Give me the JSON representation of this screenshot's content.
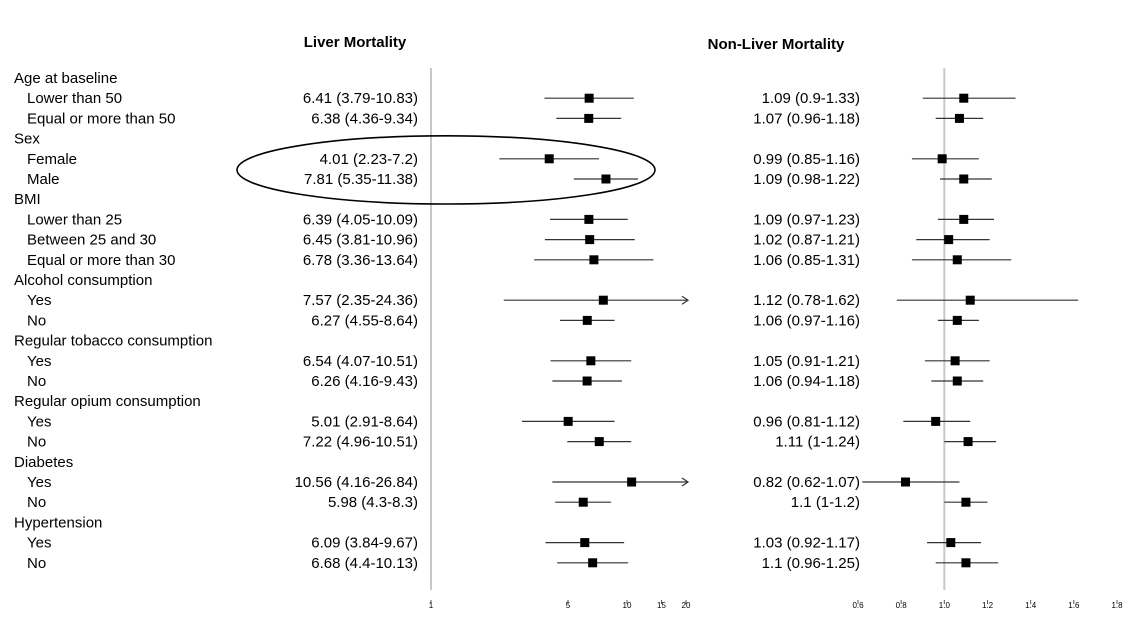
{
  "chart_data": {
    "type": "forest",
    "panels": [
      {
        "title": "Liver Mortality",
        "scale": "log",
        "xlim": [
          1,
          20
        ],
        "ticks": [
          1,
          5,
          10,
          15,
          20
        ],
        "tick_labels": [
          "1",
          "5",
          "10",
          "15",
          "20"
        ],
        "reference_line": 1,
        "rows": [
          {
            "label": "Lower than 50",
            "group": "Age at baseline",
            "estimate": 6.41,
            "lower": 3.79,
            "upper": 10.83,
            "text": "6.41 (3.79-10.83)"
          },
          {
            "label": "Equal or more than 50",
            "group": "Age at baseline",
            "estimate": 6.38,
            "lower": 4.36,
            "upper": 9.34,
            "text": "6.38 (4.36-9.34)"
          },
          {
            "label": "Female",
            "group": "Sex",
            "estimate": 4.01,
            "lower": 2.23,
            "upper": 7.2,
            "text": "4.01 (2.23-7.2)"
          },
          {
            "label": "Male",
            "group": "Sex",
            "estimate": 7.81,
            "lower": 5.35,
            "upper": 11.38,
            "text": "7.81 (5.35-11.38)"
          },
          {
            "label": "Lower than 25",
            "group": "BMI",
            "estimate": 6.39,
            "lower": 4.05,
            "upper": 10.09,
            "text": "6.39 (4.05-10.09)"
          },
          {
            "label": "Between 25 and 30",
            "group": "BMI",
            "estimate": 6.45,
            "lower": 3.81,
            "upper": 10.96,
            "text": "6.45 (3.81-10.96)"
          },
          {
            "label": "Equal or more than 30",
            "group": "BMI",
            "estimate": 6.78,
            "lower": 3.36,
            "upper": 13.64,
            "text": "6.78 (3.36-13.64)"
          },
          {
            "label": "Yes",
            "group": "Alcohol consumption",
            "estimate": 7.57,
            "lower": 2.35,
            "upper": 24.36,
            "text": "7.57 (2.35-24.36)"
          },
          {
            "label": "No",
            "group": "Alcohol consumption",
            "estimate": 6.27,
            "lower": 4.55,
            "upper": 8.64,
            "text": "6.27 (4.55-8.64)"
          },
          {
            "label": "Yes",
            "group": "Regular tobacco consumption",
            "estimate": 6.54,
            "lower": 4.07,
            "upper": 10.51,
            "text": "6.54 (4.07-10.51)"
          },
          {
            "label": "No",
            "group": "Regular tobacco consumption",
            "estimate": 6.26,
            "lower": 4.16,
            "upper": 9.43,
            "text": "6.26 (4.16-9.43)"
          },
          {
            "label": "Yes",
            "group": "Regular opium consumption",
            "estimate": 5.01,
            "lower": 2.91,
            "upper": 8.64,
            "text": "5.01 (2.91-8.64)"
          },
          {
            "label": "No",
            "group": "Regular opium consumption",
            "estimate": 7.22,
            "lower": 4.96,
            "upper": 10.51,
            "text": "7.22 (4.96-10.51)"
          },
          {
            "label": "Yes",
            "group": "Diabetes",
            "estimate": 10.56,
            "lower": 4.16,
            "upper": 26.84,
            "text": "10.56 (4.16-26.84)"
          },
          {
            "label": "No",
            "group": "Diabetes",
            "estimate": 5.98,
            "lower": 4.3,
            "upper": 8.3,
            "text": "5.98 (4.3-8.3)"
          },
          {
            "label": "Yes",
            "group": "Hypertension",
            "estimate": 6.09,
            "lower": 3.84,
            "upper": 9.67,
            "text": "6.09 (3.84-9.67)"
          },
          {
            "label": "No",
            "group": "Hypertension",
            "estimate": 6.68,
            "lower": 4.4,
            "upper": 10.13,
            "text": "6.68 (4.4-10.13)"
          }
        ]
      },
      {
        "title": "Non-Liver Mortality",
        "scale": "linear",
        "xlim": [
          0.6,
          1.8
        ],
        "ticks": [
          0.6,
          0.8,
          1.0,
          1.2,
          1.4,
          1.6,
          1.8
        ],
        "tick_labels": [
          "0.6",
          "0.8",
          "1.0",
          "1.2",
          "1.4",
          "1.6",
          "1.8"
        ],
        "reference_line": 1.0,
        "rows": [
          {
            "estimate": 1.09,
            "lower": 0.9,
            "upper": 1.33,
            "text": "1.09 (0.9-1.33)"
          },
          {
            "estimate": 1.07,
            "lower": 0.96,
            "upper": 1.18,
            "text": "1.07 (0.96-1.18)"
          },
          {
            "estimate": 0.99,
            "lower": 0.85,
            "upper": 1.16,
            "text": "0.99 (0.85-1.16)"
          },
          {
            "estimate": 1.09,
            "lower": 0.98,
            "upper": 1.22,
            "text": "1.09 (0.98-1.22)"
          },
          {
            "estimate": 1.09,
            "lower": 0.97,
            "upper": 1.23,
            "text": "1.09 (0.97-1.23)"
          },
          {
            "estimate": 1.02,
            "lower": 0.87,
            "upper": 1.21,
            "text": "1.02 (0.87-1.21)"
          },
          {
            "estimate": 1.06,
            "lower": 0.85,
            "upper": 1.31,
            "text": "1.06 (0.85-1.31)"
          },
          {
            "estimate": 1.12,
            "lower": 0.78,
            "upper": 1.62,
            "text": "1.12 (0.78-1.62)"
          },
          {
            "estimate": 1.06,
            "lower": 0.97,
            "upper": 1.16,
            "text": "1.06 (0.97-1.16)"
          },
          {
            "estimate": 1.05,
            "lower": 0.91,
            "upper": 1.21,
            "text": "1.05 (0.91-1.21)"
          },
          {
            "estimate": 1.06,
            "lower": 0.94,
            "upper": 1.18,
            "text": "1.06 (0.94-1.18)"
          },
          {
            "estimate": 0.96,
            "lower": 0.81,
            "upper": 1.12,
            "text": "0.96 (0.81-1.12)"
          },
          {
            "estimate": 1.11,
            "lower": 1.0,
            "upper": 1.24,
            "text": "1.11 (1-1.24)"
          },
          {
            "estimate": 0.82,
            "lower": 0.62,
            "upper": 1.07,
            "text": "0.82 (0.62-1.07)"
          },
          {
            "estimate": 1.1,
            "lower": 1.0,
            "upper": 1.2,
            "text": "1.1 (1-1.2)"
          },
          {
            "estimate": 1.03,
            "lower": 0.92,
            "upper": 1.17,
            "text": "1.03 (0.92-1.17)"
          },
          {
            "estimate": 1.1,
            "lower": 0.96,
            "upper": 1.25,
            "text": "1.1 (0.96-1.25)"
          }
        ]
      }
    ],
    "groups": [
      "Age at baseline",
      "Sex",
      "BMI",
      "Alcohol consumption",
      "Regular tobacco consumption",
      "Regular opium consumption",
      "Diabetes",
      "Hypertension"
    ],
    "highlight": {
      "shape": "ellipse",
      "group": "Sex"
    }
  },
  "colors": {
    "text": "#000000",
    "line": "#333333",
    "marker": "#000000",
    "reference": "#c8c8c8"
  }
}
